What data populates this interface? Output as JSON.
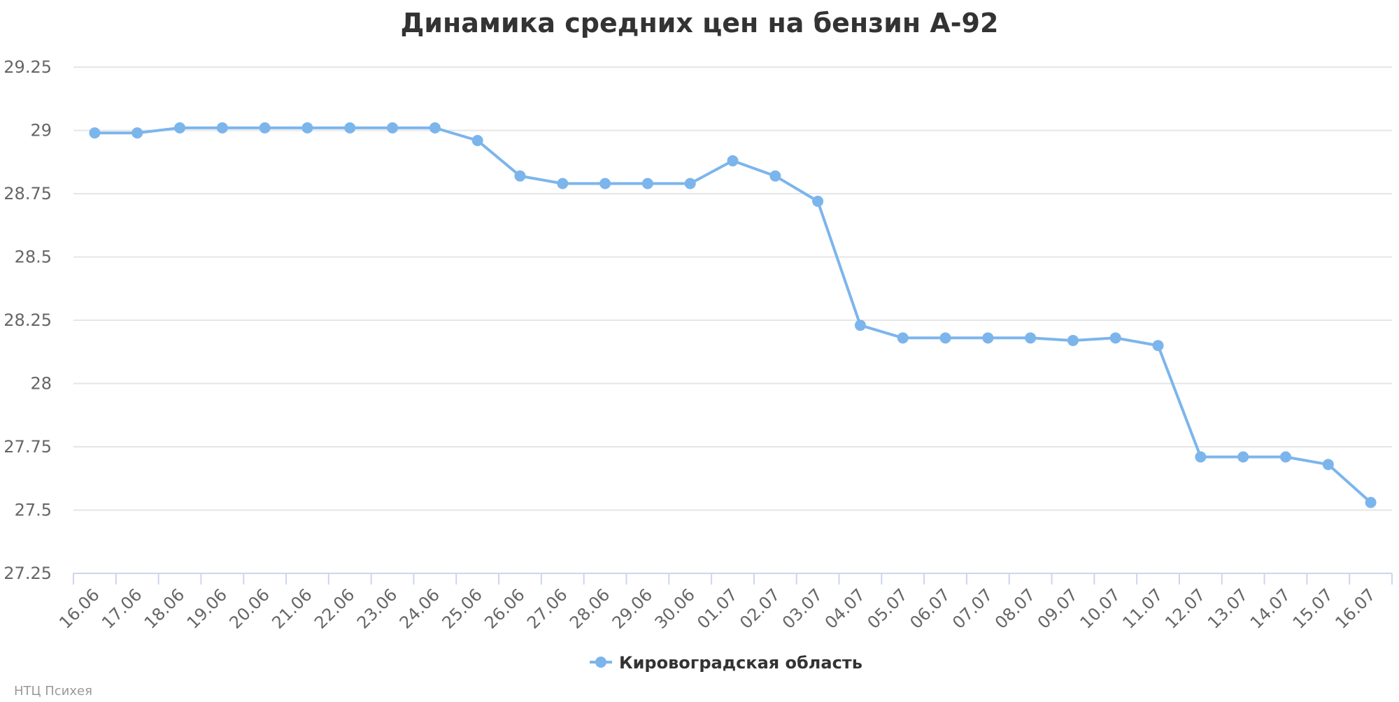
{
  "chart_data": {
    "type": "line",
    "title": "Динамика средних цен на бензин А-92",
    "categories": [
      "16.06",
      "17.06",
      "18.06",
      "19.06",
      "20.06",
      "21.06",
      "22.06",
      "23.06",
      "24.06",
      "25.06",
      "26.06",
      "27.06",
      "28.06",
      "29.06",
      "30.06",
      "01.07",
      "02.07",
      "03.07",
      "04.07",
      "05.07",
      "06.07",
      "07.07",
      "08.07",
      "09.07",
      "10.07",
      "11.07",
      "12.07",
      "13.07",
      "14.07",
      "15.07",
      "16.07"
    ],
    "series": [
      {
        "name": "Кировоградская область",
        "color": "#7cb5ec",
        "values": [
          28.99,
          28.99,
          29.01,
          29.01,
          29.01,
          29.01,
          29.01,
          29.01,
          29.01,
          28.96,
          28.82,
          28.79,
          28.79,
          28.79,
          28.79,
          28.88,
          28.82,
          28.72,
          28.23,
          28.18,
          28.18,
          28.18,
          28.18,
          28.17,
          28.18,
          28.15,
          27.71,
          27.71,
          27.71,
          27.68,
          27.53
        ]
      }
    ],
    "ylim": [
      27.25,
      29.25
    ],
    "yticks": [
      "27.25",
      "27.5",
      "27.75",
      "28",
      "28.25",
      "28.5",
      "28.75",
      "29",
      "29.25"
    ],
    "grid": true,
    "legend_position": "bottom-center"
  },
  "credit": "НТЦ Психея"
}
